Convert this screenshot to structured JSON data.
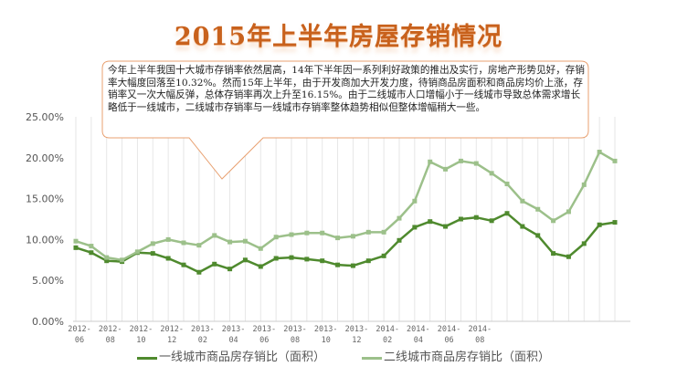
{
  "title": "2015年上半年房屋存销情况",
  "callout": "今年上半年我国十大城市存销率依然居高，14年下半年因一系列利好政策的推出及实行，房地产形势见好，存销率大幅度回落至10.32%。然而15年上半年，由于开发商加大开发力度，待销商品房面积和商品房均价上涨，存销率又一次大幅反弹，总体存销率再次上升至16.15%。由于二线城市人口增幅小于一线城市导致总体需求增长略低于一线城市，二线城市存销率与一线城市存销率整体趋势相似但整体增幅稍大一些。",
  "colors": {
    "series1": "#4f8a2e",
    "series2": "#9cc08a",
    "title": "#c8611c",
    "callout_border": "#e8a070"
  },
  "chart_data": {
    "type": "line",
    "title": "",
    "xlabel": "",
    "ylabel": "",
    "ylim": [
      0,
      25
    ],
    "yticks": [
      "0.00%",
      "5.00%",
      "10.00%",
      "15.00%",
      "20.00%",
      "25.00%"
    ],
    "xtick_labels": [
      "2012-06",
      "2012-08",
      "2012-10",
      "2012-12",
      "2013-02",
      "2013-04",
      "2013-06",
      "2013-08",
      "2013-10",
      "2013-12",
      "2014-02",
      "2014-04",
      "2014-06",
      "2014-08"
    ],
    "grid": "vertical",
    "legend": "bottom",
    "series": [
      {
        "name": "一线城市商品房存销比（面积）",
        "color": "#4f8a2e",
        "values": [
          9.0,
          8.4,
          7.4,
          7.3,
          8.4,
          8.3,
          7.7,
          6.9,
          6.0,
          7.0,
          6.4,
          7.5,
          6.7,
          7.7,
          7.8,
          7.6,
          7.4,
          6.9,
          6.8,
          7.4,
          8.0,
          9.9,
          11.5,
          12.2,
          11.6,
          12.5,
          12.7,
          12.3,
          13.2,
          11.6,
          10.5,
          8.3,
          7.9,
          9.5,
          11.8,
          12.1
        ]
      },
      {
        "name": "二线城市商品房存销比（面积）",
        "color": "#9cc08a",
        "values": [
          9.8,
          9.2,
          7.8,
          7.5,
          8.5,
          9.5,
          10.0,
          9.6,
          9.3,
          10.5,
          9.7,
          9.8,
          8.9,
          10.3,
          10.6,
          10.8,
          10.8,
          10.2,
          10.4,
          10.9,
          10.9,
          12.6,
          14.7,
          19.5,
          18.6,
          19.6,
          19.3,
          18.1,
          16.8,
          14.7,
          13.7,
          12.3,
          13.4,
          16.7,
          20.7,
          19.6
        ]
      }
    ]
  }
}
